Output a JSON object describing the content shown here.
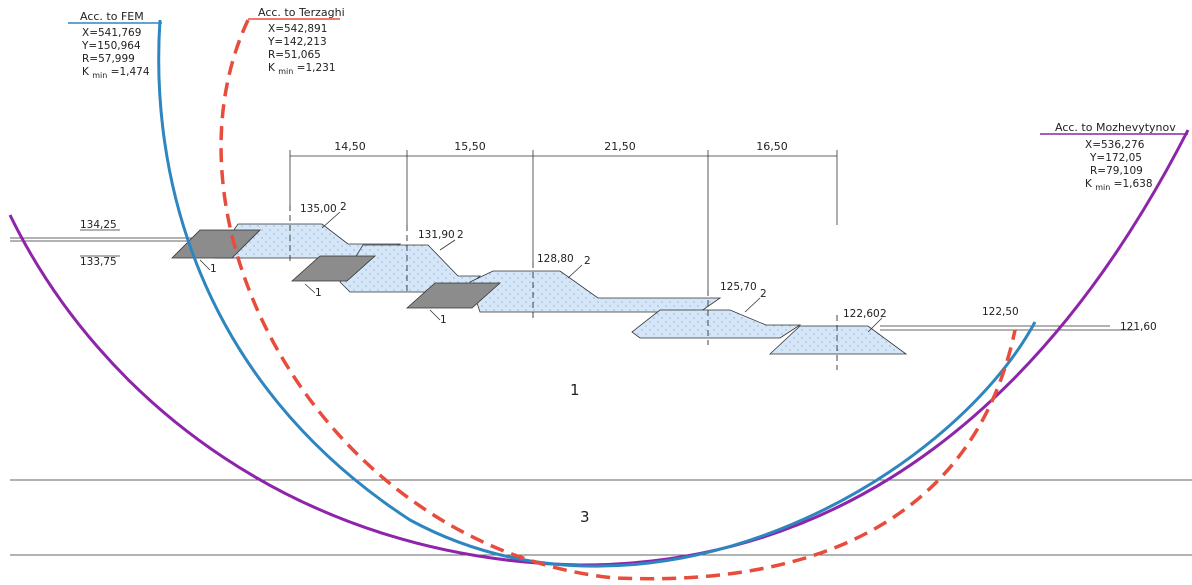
{
  "labels": {
    "fem": {
      "title": "Acc. to FEM",
      "x": "X=541,769",
      "y": "Y=150,964",
      "r": "R=57,999",
      "k_prefix": "K",
      "k_sub": "min",
      "k_value": "=1,474"
    },
    "terzaghi": {
      "title": "Acc. to Terzaghi",
      "x": "X=542,891",
      "y": "Y=142,213",
      "r": "R=51,065",
      "k_prefix": "K",
      "k_sub": "min",
      "k_value": "=1,231"
    },
    "mozhevytynov": {
      "title": "Acc. to Mozhevytynov",
      "x": "X=536,276",
      "y": "Y=172,05",
      "r": "R=79,109",
      "k_prefix": "K",
      "k_sub": "min",
      "k_value": "=1,638"
    }
  },
  "dimensions": [
    "14,50",
    "15,50",
    "21,50",
    "16,50"
  ],
  "elevations": {
    "e1": "134,25",
    "e2": "133,75",
    "e3": "135,00",
    "e4": "131,90",
    "e5": "128,80",
    "e6": "125,70",
    "e7": "122,60",
    "e8": "122,50",
    "e9": "121,60"
  },
  "callouts": {
    "one": "1",
    "two": "2"
  },
  "zones": {
    "soil1": "1",
    "soil3": "3"
  },
  "colors": {
    "fem": "#2e86c1",
    "terzaghi": "#e74c3c",
    "mozhevytynov": "#8e24aa",
    "fill": "#d4e6f8",
    "rock": "#8c8c8c"
  }
}
